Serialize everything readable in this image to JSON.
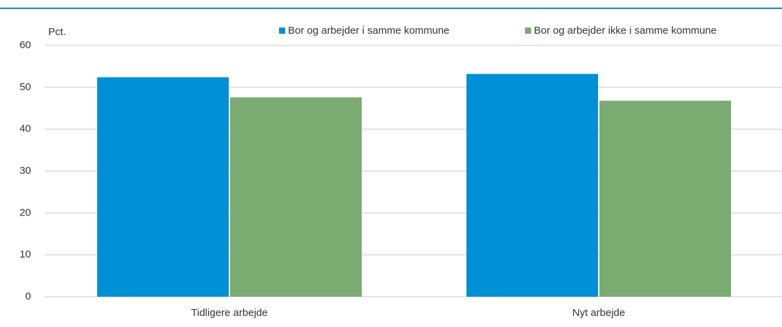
{
  "chart_data": {
    "type": "bar",
    "y_label": "Pct.",
    "categories": [
      "Tidligere arbejde",
      "Nyt arbejde"
    ],
    "series": [
      {
        "name": "Bor og arbejder i samme kommune",
        "color": "#0090d8",
        "values": [
          52.4,
          53.2
        ]
      },
      {
        "name": "Bor og arbejder ikke i samme kommune",
        "color": "#7aab71",
        "values": [
          47.6,
          46.8
        ]
      }
    ],
    "ylim": [
      0,
      60
    ],
    "yticks": [
      0,
      10,
      20,
      30,
      40,
      50,
      60
    ],
    "grid": true,
    "legend": "top"
  }
}
